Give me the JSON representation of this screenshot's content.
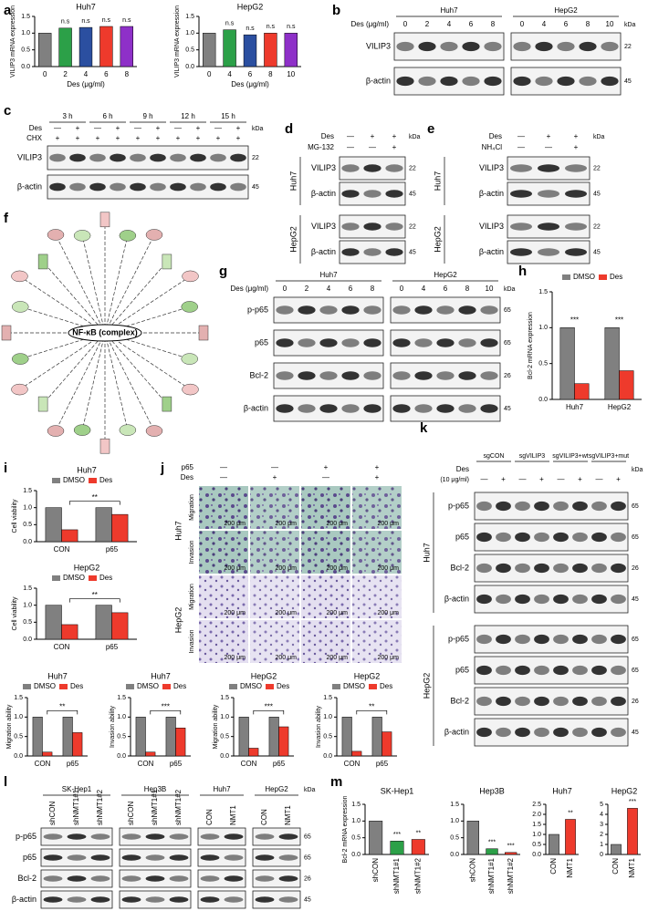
{
  "panel_labels": [
    "a",
    "b",
    "c",
    "d",
    "e",
    "f",
    "g",
    "h",
    "i",
    "j",
    "k",
    "l",
    "m"
  ],
  "kda_unit": "kDa",
  "chart_data": [
    {
      "type": "bar",
      "title": "Huh7",
      "ylabel": "VILIP3 mRNA expression",
      "xlabel": "Des (μg/ml)",
      "categories": [
        "0",
        "2",
        "4",
        "6",
        "8"
      ],
      "values": [
        1.0,
        1.15,
        1.17,
        1.2,
        1.2
      ],
      "colors": [
        "#808080",
        "#2ca048",
        "#2b4fa0",
        "#ee3a2c",
        "#8e30c8"
      ],
      "sig": [
        null,
        "n.s",
        "n.s",
        "n.s",
        "n.s"
      ],
      "ylim": [
        0,
        1.5
      ],
      "yticks": [
        {
          "value": 0,
          "label": "0.0"
        },
        0.5,
        {
          "value": 1,
          "label": "1.0"
        },
        1.5
      ]
    },
    {
      "type": "bar",
      "title": "HepG2",
      "ylabel": "VILIP3 mRNA expression",
      "xlabel": "Des (μg/ml)",
      "categories": [
        "0",
        "4",
        "6",
        "8",
        "10"
      ],
      "values": [
        1.0,
        1.1,
        0.95,
        1.0,
        1.0
      ],
      "colors": [
        "#808080",
        "#2ca048",
        "#2b4fa0",
        "#ee3a2c",
        "#8e30c8"
      ],
      "sig": [
        null,
        "n.s",
        "n.s",
        "n.s",
        "n.s"
      ],
      "ylim": [
        0,
        1.5
      ],
      "yticks": [
        {
          "value": 0,
          "label": "0.0"
        },
        0.5,
        {
          "value": 1,
          "label": "1.0"
        },
        1.5
      ]
    },
    {
      "type": "bar",
      "ylabel": "Bcl-2 mRNA expression",
      "categories": [
        "Huh7",
        "HepG2"
      ],
      "series": [
        {
          "name": "DMSO",
          "color": "#808080",
          "values": [
            1.0,
            1.0
          ]
        },
        {
          "name": "Des",
          "color": "#ee3a2c",
          "values": [
            0.22,
            0.4
          ]
        }
      ],
      "sig": [
        "***",
        "***"
      ],
      "ylim": [
        0,
        1.5
      ],
      "yticks": [
        {
          "value": 0,
          "label": "0.0"
        },
        0.5,
        {
          "value": 1,
          "label": "1.0"
        },
        1.5
      ]
    },
    {
      "type": "bar",
      "title": "Huh7",
      "ylabel": "Cell viability",
      "categories": [
        "CON",
        "p65"
      ],
      "series": [
        {
          "name": "DMSO",
          "color": "#808080",
          "values": [
            1.0,
            1.0
          ]
        },
        {
          "name": "Des",
          "color": "#ee3a2c",
          "values": [
            0.35,
            0.8
          ]
        }
      ],
      "bracket": "**",
      "ylim": [
        0,
        1.5
      ],
      "yticks": [
        {
          "value": 0,
          "label": "0.0"
        },
        0.5,
        {
          "value": 1,
          "label": "1.0"
        },
        1.5
      ]
    },
    {
      "type": "bar",
      "title": "HepG2",
      "ylabel": "Cell viability",
      "categories": [
        "CON",
        "p65"
      ],
      "series": [
        {
          "name": "DMSO",
          "color": "#808080",
          "values": [
            1.0,
            1.0
          ]
        },
        {
          "name": "Des",
          "color": "#ee3a2c",
          "values": [
            0.43,
            0.78
          ]
        }
      ],
      "bracket": "**",
      "ylim": [
        0,
        1.5
      ],
      "yticks": [
        {
          "value": 0,
          "label": "0.0"
        },
        0.5,
        {
          "value": 1,
          "label": "1.0"
        },
        1.5
      ]
    },
    {
      "type": "bar",
      "title": "Huh7",
      "ylabel": "Migration ability",
      "categories": [
        "CON",
        "p65"
      ],
      "series": [
        {
          "name": "DMSO",
          "color": "#808080",
          "values": [
            1.0,
            1.0
          ]
        },
        {
          "name": "Des",
          "color": "#ee3a2c",
          "values": [
            0.1,
            0.6
          ]
        }
      ],
      "bracket": "**",
      "ylim": [
        0,
        1.5
      ],
      "yticks": [
        {
          "value": 0,
          "label": "0.0"
        },
        0.5,
        {
          "value": 1,
          "label": "1.0"
        },
        1.5
      ]
    },
    {
      "type": "bar",
      "title": "Huh7",
      "ylabel": "Invasion ability",
      "categories": [
        "CON",
        "p65"
      ],
      "series": [
        {
          "name": "DMSO",
          "color": "#808080",
          "values": [
            1.0,
            1.0
          ]
        },
        {
          "name": "Des",
          "color": "#ee3a2c",
          "values": [
            0.1,
            0.72
          ]
        }
      ],
      "bracket": "***",
      "ylim": [
        0,
        1.5
      ],
      "yticks": [
        {
          "value": 0,
          "label": "0.0"
        },
        0.5,
        {
          "value": 1,
          "label": "1.0"
        },
        1.5
      ]
    },
    {
      "type": "bar",
      "title": "HepG2",
      "ylabel": "Migration ability",
      "categories": [
        "CON",
        "p65"
      ],
      "series": [
        {
          "name": "DMSO",
          "color": "#808080",
          "values": [
            1.0,
            1.0
          ]
        },
        {
          "name": "Des",
          "color": "#ee3a2c",
          "values": [
            0.2,
            0.75
          ]
        }
      ],
      "bracket": "***",
      "ylim": [
        0,
        1.5
      ],
      "yticks": [
        {
          "value": 0,
          "label": "0.0"
        },
        0.5,
        {
          "value": 1,
          "label": "1.0"
        },
        1.5
      ]
    },
    {
      "type": "bar",
      "title": "HepG2",
      "ylabel": "Invasion ability",
      "categories": [
        "CON",
        "p65"
      ],
      "series": [
        {
          "name": "DMSO",
          "color": "#808080",
          "values": [
            1.0,
            1.0
          ]
        },
        {
          "name": "Des",
          "color": "#ee3a2c",
          "values": [
            0.12,
            0.62
          ]
        }
      ],
      "bracket": "**",
      "ylim": [
        0,
        1.5
      ],
      "yticks": [
        {
          "value": 0,
          "label": "0.0"
        },
        0.5,
        {
          "value": 1,
          "label": "1.0"
        },
        1.5
      ]
    },
    {
      "type": "bar",
      "title": "SK-Hep1",
      "ylabel": "Bcl-2 mRNA expression",
      "categories": [
        "shCON",
        "shNMT1#1",
        "shNMT1#2"
      ],
      "values": [
        1.0,
        0.4,
        0.45
      ],
      "colors": [
        "#808080",
        "#2ca048",
        "#ee3a2c"
      ],
      "sig": [
        null,
        "***",
        "**"
      ],
      "ylim": [
        0,
        1.5
      ],
      "yticks": [
        {
          "value": 0,
          "label": "0.0"
        },
        0.5,
        {
          "value": 1,
          "label": "1.0"
        },
        1.5
      ]
    },
    {
      "type": "bar",
      "title": "Hep3B",
      "categories": [
        "shCON",
        "shNMT1#1",
        "shNMT1#2"
      ],
      "values": [
        1.0,
        0.17,
        0.06
      ],
      "colors": [
        "#808080",
        "#2ca048",
        "#ee3a2c"
      ],
      "sig": [
        null,
        "***",
        "***"
      ],
      "ylim": [
        0,
        1.5
      ],
      "yticks": [
        {
          "value": 0,
          "label": "0.0"
        },
        0.5,
        {
          "value": 1,
          "label": "1.0"
        },
        1.5
      ]
    },
    {
      "type": "bar",
      "title": "Huh7",
      "categories": [
        "CON",
        "NMT1"
      ],
      "values": [
        1.0,
        1.75
      ],
      "colors": [
        "#808080",
        "#ee3a2c"
      ],
      "sig": [
        null,
        "**"
      ],
      "ylim": [
        0,
        2.5
      ],
      "yticks": [
        {
          "value": 0,
          "label": "0.0"
        },
        0.5,
        {
          "value": 1,
          "label": "1.0"
        },
        1.5,
        {
          "value": 2,
          "label": "2.0"
        },
        2.5
      ]
    },
    {
      "type": "bar",
      "title": "HepG2",
      "categories": [
        "CON",
        "NMT1"
      ],
      "values": [
        1.0,
        4.6
      ],
      "colors": [
        "#808080",
        "#ee3a2c"
      ],
      "sig": [
        null,
        "***"
      ],
      "ylim": [
        0,
        5
      ],
      "yticks": [
        0,
        1,
        2,
        3,
        4,
        5
      ]
    }
  ],
  "blots": {
    "b": {
      "lanes_label": "Des (μg/ml)",
      "columns": [
        {
          "name": "Huh7",
          "lanes": [
            "0",
            "2",
            "4",
            "6",
            "8"
          ]
        },
        {
          "name": "HepG2",
          "lanes": [
            "0",
            "4",
            "6",
            "8",
            "10"
          ]
        }
      ],
      "sections": [
        {
          "rows": [
            "VILIP3",
            "β-actin"
          ],
          "kda": [
            "22",
            "45"
          ]
        }
      ]
    },
    "c": {
      "columns": [
        {
          "name": "3 h"
        },
        {
          "name": "6 h"
        },
        {
          "name": "9 h"
        },
        {
          "name": "12 h"
        },
        {
          "name": "15 h"
        }
      ],
      "treatments": [
        {
          "name": "Des",
          "values": [
            [
              "—",
              "+"
            ],
            [
              "—",
              "+"
            ],
            [
              "—",
              "+"
            ],
            [
              "—",
              "+"
            ],
            [
              "—",
              "+"
            ]
          ]
        },
        {
          "name": "CHX",
          "values": [
            [
              "+",
              "+"
            ],
            [
              "+",
              "+"
            ],
            [
              "+",
              "+"
            ],
            [
              "+",
              "+"
            ],
            [
              "+",
              "+"
            ]
          ]
        }
      ],
      "sections": [
        {
          "rows": [
            "VILIP3",
            "β-actin"
          ],
          "kda": [
            "22",
            "45"
          ]
        }
      ]
    },
    "d": {
      "treatments": [
        {
          "name": "Des",
          "values": [
            [
              "—",
              "+",
              "+"
            ]
          ]
        },
        {
          "name": "MG-132",
          "values": [
            [
              "—",
              "—",
              "+"
            ]
          ]
        }
      ],
      "sections": [
        {
          "name": "Huh7",
          "rows": [
            "VILIP3",
            "β-actin"
          ],
          "kda": [
            "22",
            "45"
          ]
        },
        {
          "name": "HepG2",
          "rows": [
            "VILIP3",
            "β-actin"
          ],
          "kda": [
            "22",
            "45"
          ]
        }
      ]
    },
    "e": {
      "treatments": [
        {
          "name": "Des",
          "values": [
            [
              "—",
              "+",
              "+"
            ]
          ]
        },
        {
          "name": "NH₄Cl",
          "values": [
            [
              "—",
              "—",
              "+"
            ]
          ]
        }
      ],
      "sections": [
        {
          "name": "Huh7",
          "rows": [
            "VILIP3",
            "β-actin"
          ],
          "kda": [
            "22",
            "45"
          ]
        },
        {
          "name": "HepG2",
          "rows": [
            "VILIP3",
            "β-actin"
          ],
          "kda": [
            "22",
            "45"
          ]
        }
      ]
    },
    "g": {
      "lanes_label": "Des (μg/ml)",
      "columns": [
        {
          "name": "Huh7",
          "lanes": [
            "0",
            "2",
            "4",
            "6",
            "8"
          ]
        },
        {
          "name": "HepG2",
          "lanes": [
            "0",
            "4",
            "6",
            "8",
            "10"
          ]
        }
      ],
      "sections": [
        {
          "rows": [
            "p-p65",
            "p65",
            "Bcl-2",
            "β-actin"
          ],
          "kda": [
            "65",
            "65",
            "26",
            "45"
          ]
        }
      ]
    },
    "k": {
      "columns": [
        {
          "name": "sgCON"
        },
        {
          "name": "sgVILIP3"
        },
        {
          "name": "sgVILIP3+wt"
        },
        {
          "name": "sgVILIP3+mut"
        }
      ],
      "treatments": [
        {
          "name": "Des",
          "note": "(10 μg/ml)",
          "values": [
            [
              "—",
              "+"
            ],
            [
              "—",
              "+"
            ],
            [
              "—",
              "+"
            ],
            [
              "—",
              "+"
            ]
          ]
        }
      ],
      "sections": [
        {
          "name": "Huh7",
          "rows": [
            "p-p65",
            "p65",
            "Bcl-2",
            "β-actin"
          ],
          "kda": [
            "65",
            "65",
            "26",
            "45"
          ]
        },
        {
          "name": "HepG2",
          "rows": [
            "p-p65",
            "p65",
            "Bcl-2",
            "β-actin"
          ],
          "kda": [
            "65",
            "65",
            "26",
            "45"
          ]
        }
      ]
    },
    "l": {
      "columns": [
        {
          "name": "SK-Hep1",
          "lanes": [
            "shCON",
            "shNMT1#1",
            "shNMT1#2"
          ]
        },
        {
          "name": "Hep3B",
          "lanes": [
            "shCON",
            "shNMT1#1",
            "shNMT1#2"
          ]
        },
        {
          "name": "Huh7",
          "lanes": [
            "CON",
            "NMT1"
          ]
        },
        {
          "name": "HepG2",
          "lanes": [
            "CON",
            "NMT1"
          ]
        }
      ],
      "sections": [
        {
          "rows": [
            "p-p65",
            "p65",
            "Bcl-2",
            "β-actin"
          ],
          "kda": [
            "65",
            "65",
            "26",
            "45"
          ]
        }
      ]
    }
  },
  "network": {
    "center": "NF-κB (complex)"
  },
  "migration": {
    "treatments": [
      {
        "name": "p65",
        "values": [
          "—",
          "—",
          "+",
          "+"
        ]
      },
      {
        "name": "Des",
        "values": [
          "—",
          "+",
          "—",
          "+"
        ]
      }
    ],
    "sections": [
      {
        "name": "Huh7",
        "rows": [
          "Migration",
          "Invasion"
        ]
      },
      {
        "name": "HepG2",
        "rows": [
          "Migration",
          "Invasion"
        ]
      }
    ],
    "scale_bar": "200 μm"
  }
}
